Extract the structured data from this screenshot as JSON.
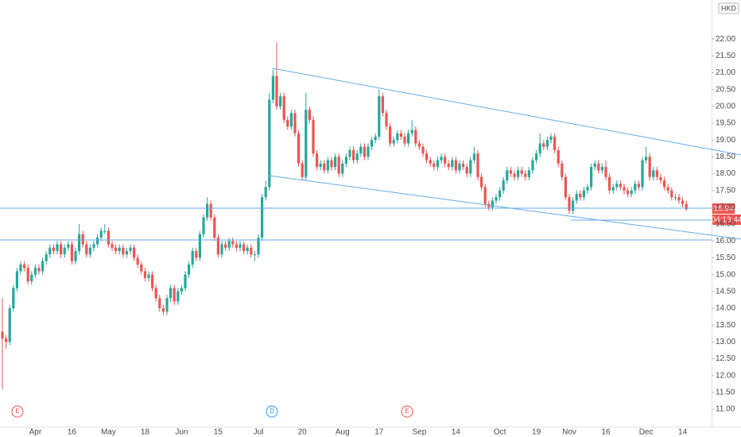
{
  "chart_data": {
    "type": "candlestick",
    "currency": "HKD",
    "countdown": "04:13:44",
    "events": [
      "E",
      "D",
      "E"
    ],
    "up_color": "#26a69a",
    "down_color": "#ef5350",
    "ylim": [
      10.6,
      23.16
    ],
    "yticks": [
      {
        "value": 11,
        "label": "11.00"
      },
      {
        "value": 11.5,
        "label": "11.50"
      },
      {
        "value": 12,
        "label": "12.00"
      },
      {
        "value": 12.5,
        "label": "12.50"
      },
      {
        "value": 13,
        "label": "13.00"
      },
      {
        "value": 13.5,
        "label": "13.50"
      },
      {
        "value": 14,
        "label": "14.00"
      },
      {
        "value": 14.5,
        "label": "14.50"
      },
      {
        "value": 15,
        "label": "15.00"
      },
      {
        "value": 15.5,
        "label": "15.50"
      },
      {
        "value": 16,
        "label": "16.00"
      },
      {
        "value": 16.5,
        "label": "16.50"
      },
      {
        "value": 17,
        "label": "17.00"
      },
      {
        "value": 17.5,
        "label": "17.50"
      },
      {
        "value": 18,
        "label": "18.00"
      },
      {
        "value": 18.5,
        "label": "18.50"
      },
      {
        "value": 19,
        "label": "19.00"
      },
      {
        "value": 19.5,
        "label": "19.50"
      },
      {
        "value": 20,
        "label": "20.00"
      },
      {
        "value": 20.5,
        "label": "20.50"
      },
      {
        "value": 21,
        "label": "21.00"
      },
      {
        "value": 21.5,
        "label": "21.50"
      },
      {
        "value": 22,
        "label": "22.00"
      }
    ],
    "grid": false,
    "categories": [
      null,
      null,
      null,
      null,
      null,
      null,
      null,
      null,
      null,
      "Apr",
      null,
      null,
      null,
      null,
      null,
      null,
      null,
      null,
      null,
      "16",
      null,
      null,
      null,
      null,
      null,
      null,
      null,
      null,
      null,
      "May",
      null,
      null,
      null,
      null,
      null,
      null,
      null,
      null,
      null,
      "18",
      null,
      null,
      null,
      null,
      null,
      null,
      null,
      null,
      null,
      "Jun",
      null,
      null,
      null,
      null,
      null,
      null,
      null,
      null,
      null,
      "15",
      null,
      null,
      null,
      null,
      null,
      null,
      null,
      null,
      null,
      null,
      "Jul",
      null,
      null,
      null,
      null,
      null,
      null,
      null,
      null,
      null,
      null,
      null,
      "20",
      null,
      null,
      null,
      null,
      null,
      null,
      null,
      null,
      null,
      null,
      "Aug",
      null,
      null,
      null,
      null,
      null,
      null,
      null,
      null,
      null,
      "17",
      null,
      null,
      null,
      null,
      null,
      null,
      null,
      null,
      null,
      null,
      "Sep",
      null,
      null,
      null,
      null,
      null,
      null,
      null,
      null,
      null,
      "14",
      null,
      null,
      null,
      null,
      null,
      null,
      null,
      null,
      null,
      null,
      null,
      "Oct",
      null,
      null,
      null,
      null,
      null,
      null,
      null,
      null,
      null,
      "19",
      null,
      null,
      null,
      null,
      null,
      null,
      null,
      null,
      "Nov",
      null,
      null,
      null,
      null,
      null,
      null,
      null,
      null,
      null,
      "16",
      null,
      null,
      null,
      null,
      null,
      null,
      null,
      null,
      null,
      null,
      "Dec",
      null,
      null,
      null,
      null,
      null,
      null,
      null,
      null,
      null,
      "14",
      null
    ],
    "open": [
      13.3,
      13.1,
      13.0,
      14.0,
      14.6,
      15.1,
      15.3,
      15.2,
      14.8,
      15.0,
      15.2,
      15.1,
      15.4,
      15.6,
      15.8,
      15.7,
      15.9,
      15.6,
      15.8,
      15.9,
      15.4,
      15.7,
      16.2,
      15.9,
      15.6,
      15.8,
      15.9,
      16.1,
      16.3,
      16.3,
      15.9,
      15.8,
      15.7,
      15.8,
      15.6,
      15.7,
      15.8,
      15.5,
      15.3,
      15.1,
      14.9,
      15.0,
      14.6,
      14.3,
      14.0,
      13.9,
      14.3,
      14.6,
      14.2,
      14.5,
      14.6,
      15.0,
      15.3,
      15.7,
      15.5,
      16.2,
      16.7,
      17.1,
      16.7,
      16.1,
      15.6,
      15.9,
      15.8,
      16.0,
      15.9,
      15.8,
      15.9,
      15.7,
      15.8,
      15.6,
      15.6,
      16.1,
      17.3,
      17.6,
      20.2,
      20.9,
      20.0,
      20.3,
      19.6,
      19.4,
      19.8,
      19.2,
      18.3,
      17.9,
      19.9,
      19.6,
      18.6,
      18.2,
      18.3,
      18.1,
      18.4,
      18.2,
      18.5,
      18.0,
      18.3,
      18.5,
      18.7,
      18.4,
      18.6,
      18.8,
      18.5,
      18.8,
      19.0,
      19.1,
      20.3,
      19.8,
      19.4,
      18.9,
      19.0,
      19.2,
      19.1,
      18.9,
      19.2,
      19.3,
      18.9,
      18.8,
      18.6,
      18.4,
      18.3,
      18.2,
      18.4,
      18.5,
      18.3,
      18.2,
      18.4,
      18.1,
      18.3,
      18.2,
      18.0,
      18.4,
      18.6,
      17.9,
      17.6,
      17.1,
      17.0,
      17.2,
      17.3,
      17.5,
      17.8,
      18.1,
      18.0,
      17.9,
      18.1,
      18.0,
      17.9,
      18.1,
      18.4,
      18.6,
      18.9,
      18.8,
      19.0,
      19.1,
      18.7,
      18.3,
      17.9,
      17.3,
      16.9,
      17.2,
      17.4,
      17.3,
      17.5,
      17.6,
      18.2,
      18.3,
      18.1,
      18.2,
      17.9,
      17.5,
      17.6,
      17.7,
      17.6,
      17.5,
      17.4,
      17.5,
      17.7,
      17.6,
      18.4,
      18.5,
      17.9,
      18.1,
      17.9,
      17.8,
      17.6,
      17.5,
      17.3,
      17.3,
      17.2,
      17.1
    ],
    "high": [
      14.3,
      13.2,
      14.1,
      14.7,
      15.2,
      15.4,
      15.4,
      15.3,
      15.1,
      15.3,
      15.3,
      15.5,
      15.7,
      15.9,
      15.9,
      16.0,
      16.0,
      15.9,
      16.0,
      16.0,
      15.8,
      16.5,
      16.3,
      16.0,
      15.9,
      16.0,
      16.2,
      16.4,
      16.5,
      16.4,
      16.0,
      15.9,
      15.9,
      15.9,
      15.8,
      15.9,
      15.9,
      15.6,
      15.4,
      15.2,
      15.1,
      15.1,
      14.7,
      14.4,
      14.1,
      14.4,
      14.7,
      14.7,
      14.6,
      14.7,
      15.1,
      15.4,
      15.8,
      15.8,
      16.3,
      16.8,
      17.3,
      17.2,
      16.8,
      16.2,
      16.0,
      16.0,
      16.1,
      16.1,
      16.0,
      16.0,
      16.0,
      15.9,
      15.9,
      15.7,
      16.2,
      17.4,
      17.8,
      20.4,
      21.1,
      21.9,
      20.4,
      20.4,
      19.7,
      19.9,
      19.9,
      19.3,
      18.4,
      20.4,
      20.0,
      19.7,
      18.7,
      18.4,
      18.4,
      18.5,
      18.5,
      18.6,
      18.6,
      18.4,
      18.6,
      18.8,
      18.8,
      18.7,
      18.9,
      18.9,
      18.9,
      19.1,
      19.2,
      20.5,
      20.4,
      19.9,
      19.5,
      19.1,
      19.3,
      19.3,
      19.2,
      19.3,
      19.6,
      19.4,
      19.0,
      18.9,
      18.7,
      18.5,
      18.4,
      18.5,
      18.6,
      18.6,
      18.4,
      18.5,
      18.5,
      18.4,
      18.4,
      18.3,
      18.5,
      18.8,
      18.7,
      18.0,
      17.7,
      17.2,
      17.3,
      17.4,
      17.6,
      17.9,
      18.2,
      18.2,
      18.1,
      18.2,
      18.2,
      18.1,
      18.2,
      18.5,
      18.7,
      19.2,
      19.0,
      19.1,
      19.2,
      19.2,
      18.8,
      18.4,
      18.0,
      17.4,
      17.3,
      17.5,
      17.5,
      17.6,
      17.7,
      18.3,
      18.4,
      18.4,
      18.3,
      18.4,
      18.0,
      17.7,
      17.8,
      17.8,
      17.7,
      17.6,
      17.6,
      17.8,
      17.8,
      18.5,
      18.8,
      18.6,
      18.2,
      18.2,
      18.0,
      17.9,
      17.7,
      17.6,
      17.4,
      17.4,
      17.3,
      17.2
    ],
    "low": [
      11.6,
      12.8,
      12.9,
      13.9,
      14.5,
      15.0,
      15.1,
      14.7,
      14.7,
      14.9,
      15.0,
      15.0,
      15.3,
      15.5,
      15.6,
      15.6,
      15.5,
      15.5,
      15.7,
      15.3,
      15.3,
      15.6,
      15.8,
      15.5,
      15.5,
      15.7,
      15.8,
      16.0,
      16.2,
      15.8,
      15.7,
      15.6,
      15.6,
      15.5,
      15.5,
      15.6,
      15.4,
      15.2,
      15.0,
      14.8,
      14.8,
      14.5,
      14.2,
      13.9,
      13.8,
      13.8,
      14.2,
      14.1,
      14.1,
      14.4,
      14.5,
      14.9,
      15.2,
      15.4,
      15.4,
      16.1,
      16.6,
      16.6,
      16.0,
      15.5,
      15.5,
      15.7,
      15.7,
      15.8,
      15.7,
      15.7,
      15.6,
      15.6,
      15.5,
      15.4,
      15.5,
      16.0,
      17.2,
      17.5,
      20.1,
      19.9,
      19.9,
      19.5,
      19.3,
      19.3,
      19.1,
      18.2,
      17.8,
      17.8,
      19.5,
      18.5,
      18.1,
      18.1,
      18.0,
      18.0,
      18.1,
      18.1,
      17.9,
      17.9,
      18.2,
      18.4,
      18.3,
      18.3,
      18.5,
      18.4,
      18.4,
      18.7,
      18.9,
      19.0,
      19.7,
      19.3,
      18.8,
      18.8,
      18.9,
      19.0,
      18.8,
      18.8,
      19.1,
      18.8,
      18.7,
      18.5,
      18.3,
      18.2,
      18.1,
      18.1,
      18.3,
      18.2,
      18.1,
      18.1,
      18.0,
      18.0,
      18.1,
      17.9,
      17.9,
      18.3,
      17.8,
      17.5,
      17.0,
      16.9,
      16.9,
      17.1,
      17.2,
      17.4,
      17.7,
      17.9,
      17.8,
      17.8,
      17.9,
      17.8,
      17.8,
      18.0,
      18.3,
      18.5,
      18.7,
      18.7,
      18.9,
      18.6,
      18.2,
      17.8,
      17.2,
      16.8,
      16.8,
      17.1,
      17.2,
      17.2,
      17.4,
      17.5,
      18.1,
      18.0,
      18.0,
      17.8,
      17.4,
      17.4,
      17.5,
      17.5,
      17.4,
      17.3,
      17.3,
      17.4,
      17.5,
      17.5,
      18.3,
      17.8,
      17.8,
      17.8,
      17.7,
      17.5,
      17.4,
      17.2,
      17.2,
      17.1,
      17.0,
      16.9
    ],
    "close": [
      13.1,
      13.0,
      14.0,
      14.6,
      15.1,
      15.3,
      15.2,
      14.8,
      15.0,
      15.2,
      15.1,
      15.4,
      15.6,
      15.8,
      15.7,
      15.9,
      15.6,
      15.8,
      15.9,
      15.4,
      15.7,
      16.2,
      15.9,
      15.6,
      15.8,
      15.9,
      16.1,
      16.3,
      16.3,
      15.9,
      15.8,
      15.7,
      15.8,
      15.6,
      15.7,
      15.8,
      15.5,
      15.3,
      15.1,
      14.9,
      15.0,
      14.6,
      14.3,
      14.0,
      13.9,
      14.3,
      14.6,
      14.2,
      14.5,
      14.6,
      15.0,
      15.3,
      15.7,
      15.5,
      16.2,
      16.7,
      17.1,
      16.7,
      16.1,
      15.6,
      15.9,
      15.8,
      16.0,
      15.9,
      15.8,
      15.9,
      15.7,
      15.8,
      15.6,
      15.6,
      16.1,
      17.3,
      17.6,
      20.2,
      20.9,
      20.0,
      20.3,
      19.6,
      19.4,
      19.8,
      19.2,
      18.3,
      17.9,
      19.9,
      19.6,
      18.6,
      18.2,
      18.3,
      18.1,
      18.4,
      18.2,
      18.5,
      18.0,
      18.3,
      18.5,
      18.7,
      18.4,
      18.6,
      18.8,
      18.5,
      18.8,
      19.0,
      19.1,
      20.3,
      19.8,
      19.4,
      18.9,
      19.0,
      19.2,
      19.1,
      18.9,
      19.2,
      19.3,
      18.9,
      18.8,
      18.6,
      18.4,
      18.3,
      18.2,
      18.4,
      18.5,
      18.3,
      18.2,
      18.4,
      18.1,
      18.3,
      18.2,
      18.0,
      18.4,
      18.6,
      17.9,
      17.6,
      17.1,
      17.0,
      17.2,
      17.3,
      17.5,
      17.8,
      18.1,
      18.0,
      17.9,
      18.1,
      18.0,
      17.9,
      18.1,
      18.4,
      18.6,
      18.9,
      18.8,
      19.0,
      19.1,
      18.7,
      18.3,
      17.9,
      17.3,
      16.9,
      17.2,
      17.4,
      17.3,
      17.5,
      17.6,
      18.2,
      18.3,
      18.1,
      18.2,
      17.9,
      17.5,
      17.6,
      17.7,
      17.6,
      17.5,
      17.4,
      17.5,
      17.7,
      17.6,
      18.4,
      18.5,
      17.9,
      18.1,
      17.9,
      17.8,
      17.6,
      17.5,
      17.3,
      17.3,
      17.2,
      17.1,
      16.94
    ]
  }
}
